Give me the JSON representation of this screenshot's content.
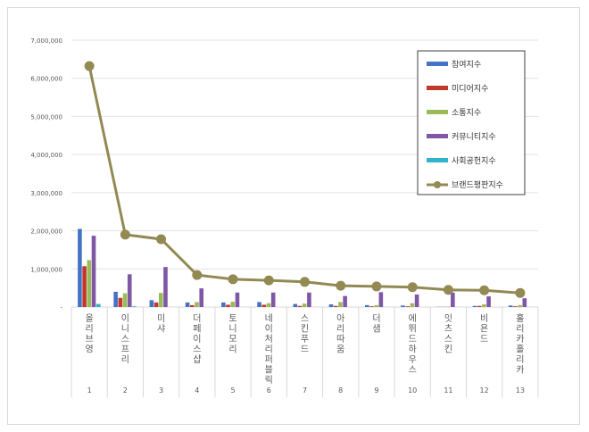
{
  "chart_data": {
    "type": "bar",
    "categories": [
      "올리브영",
      "이니스프리",
      "미샤",
      "더페이스샵",
      "토니모리",
      "네이처리퍼블릭",
      "스킨푸드",
      "아리따움",
      "더샘",
      "에뛰드하우스",
      "잇츠스킨",
      "비욘드",
      "홀리카홀리카"
    ],
    "ranks": [
      "1",
      "2",
      "3",
      "4",
      "5",
      "6",
      "7",
      "8",
      "9",
      "10",
      "11",
      "12",
      "13"
    ],
    "ylim": [
      0,
      7000000
    ],
    "yticks": [
      0,
      1000000,
      2000000,
      3000000,
      4000000,
      5000000,
      6000000,
      7000000
    ],
    "ytick_labels": [
      "-",
      "1,000,000",
      "2,000,000",
      "3,000,000",
      "4,000,000",
      "5,000,000",
      "6,000,000",
      "7,000,000"
    ],
    "grid": true,
    "legend_placement": "top-right",
    "series": [
      {
        "name": "참여지수",
        "type": "bar",
        "color": "#4472c4",
        "values": [
          2050000,
          400000,
          180000,
          120000,
          120000,
          130000,
          80000,
          70000,
          50000,
          40000,
          5000,
          30000,
          40000
        ]
      },
      {
        "name": "미디어지수",
        "type": "bar",
        "color": "#c0392b",
        "values": [
          1070000,
          240000,
          120000,
          50000,
          60000,
          60000,
          30000,
          30000,
          20000,
          20000,
          5000,
          30000,
          20000
        ]
      },
      {
        "name": "소통지수",
        "type": "bar",
        "color": "#9bbb59",
        "values": [
          1230000,
          360000,
          370000,
          130000,
          140000,
          100000,
          90000,
          130000,
          50000,
          100000,
          10000,
          70000,
          50000
        ]
      },
      {
        "name": "커뮤니티지수",
        "type": "bar",
        "color": "#7f57a6",
        "values": [
          1870000,
          860000,
          1050000,
          490000,
          380000,
          380000,
          380000,
          290000,
          390000,
          330000,
          380000,
          280000,
          230000
        ]
      },
      {
        "name": "사회공헌지수",
        "type": "bar",
        "color": "#31b4c9",
        "values": [
          80000,
          20000,
          0,
          0,
          0,
          0,
          0,
          0,
          0,
          0,
          0,
          0,
          0
        ]
      },
      {
        "name": "브랜드평판지수",
        "type": "line",
        "color": "#938953",
        "values": [
          6320000,
          1900000,
          1780000,
          840000,
          730000,
          700000,
          660000,
          560000,
          540000,
          520000,
          450000,
          440000,
          370000
        ]
      }
    ]
  }
}
